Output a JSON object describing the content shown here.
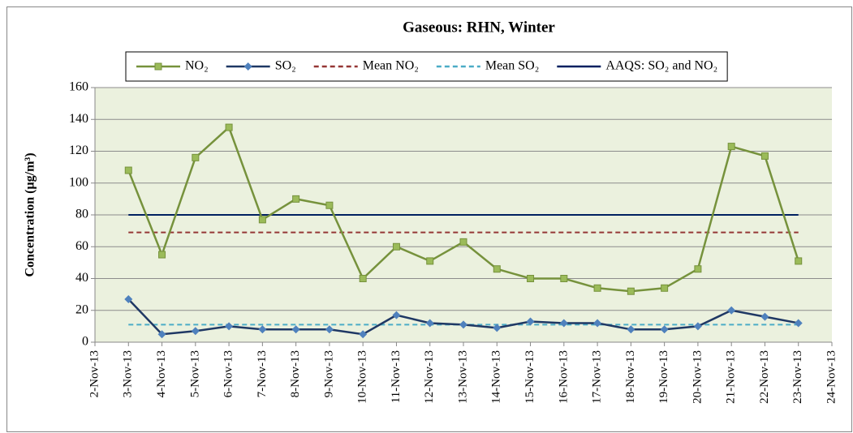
{
  "chart_data": {
    "type": "line",
    "title": "Gaseous: RHN, Winter",
    "y_label": "Concentration (µg/m³)",
    "categories": [
      "2-Nov-13",
      "3-Nov-13",
      "4-Nov-13",
      "5-Nov-13",
      "6-Nov-13",
      "7-Nov-13",
      "8-Nov-13",
      "9-Nov-13",
      "10-Nov-13",
      "11-Nov-13",
      "12-Nov-13",
      "13-Nov-13",
      "14-Nov-13",
      "15-Nov-13",
      "16-Nov-13",
      "17-Nov-13",
      "18-Nov-13",
      "19-Nov-13",
      "20-Nov-13",
      "21-Nov-13",
      "22-Nov-13",
      "23-Nov-13",
      "24-Nov-13"
    ],
    "series": [
      {
        "name": "NO₂",
        "color": "#76923c",
        "marker_color": "#9bbb59",
        "marker": "square",
        "values": [
          null,
          108,
          55,
          116,
          135,
          77,
          90,
          86,
          40,
          60,
          51,
          63,
          46,
          40,
          40,
          34,
          32,
          34,
          46,
          123,
          117,
          51,
          null
        ]
      },
      {
        "name": "SO₂",
        "color": "#1f3864",
        "marker_color": "#4f81bd",
        "marker": "diamond",
        "values": [
          null,
          27,
          5,
          7,
          10,
          8,
          8,
          8,
          5,
          17,
          12,
          11,
          9,
          13,
          12,
          12,
          8,
          8,
          10,
          20,
          16,
          12,
          null
        ]
      }
    ],
    "reference_lines": [
      {
        "name": "Mean NO₂",
        "value": 69,
        "color": "#953735",
        "dashed": true
      },
      {
        "name": "Mean SO₂",
        "value": 11,
        "color": "#4bacc6",
        "dashed": true
      },
      {
        "name": "AAQS: SO₂ and NO₂",
        "value": 80,
        "color": "#002060",
        "dashed": false
      }
    ],
    "ylim": [
      0,
      160
    ],
    "yticks": [
      0,
      20,
      40,
      60,
      80,
      100,
      120,
      140,
      160
    ],
    "grid": true,
    "legend": "top",
    "background": "#ebf1de"
  }
}
